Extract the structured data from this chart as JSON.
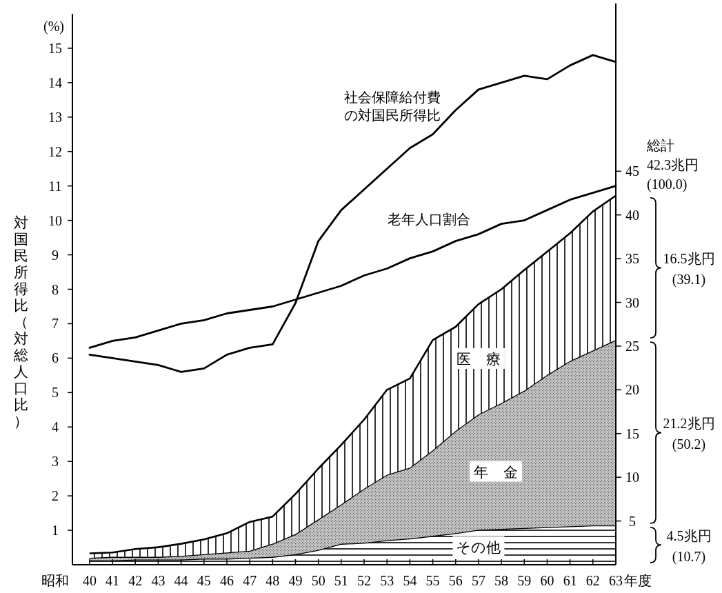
{
  "chart_data": {
    "type": "line",
    "ylabel": "対国民所得比（対総人口比）",
    "xlabel": "昭和",
    "x": [
      40,
      41,
      42,
      43,
      44,
      45,
      46,
      47,
      48,
      49,
      50,
      51,
      52,
      53,
      54,
      55,
      56,
      57,
      58,
      59,
      60,
      61,
      62,
      63
    ],
    "xlim": [
      39.25,
      63
    ],
    "xticks": [
      40,
      41,
      42,
      43,
      44,
      45,
      46,
      47,
      48,
      49,
      50,
      51,
      52,
      53,
      54,
      55,
      56,
      57,
      58,
      59,
      60,
      61,
      62,
      63
    ],
    "ylim": [
      0,
      16
    ],
    "yticks": [
      1,
      2,
      3,
      4,
      5,
      6,
      7,
      8,
      9,
      10,
      11,
      12,
      13,
      14,
      15
    ],
    "y2lim": [
      0,
      63
    ],
    "y2ticks": [
      5,
      10,
      15,
      20,
      25,
      30,
      35,
      40,
      45
    ],
    "stacked": true,
    "legend": false,
    "grid": false,
    "series": [
      {
        "name": "社会保障給付費の対国民所得比",
        "color": "#000000",
        "values": [
          6.1,
          6.0,
          5.9,
          5.8,
          5.6,
          5.7,
          6.1,
          6.3,
          6.4,
          7.6,
          9.4,
          10.3,
          10.9,
          11.5,
          12.1,
          12.5,
          13.2,
          13.8,
          14.0,
          14.2,
          14.1,
          14.5,
          14.8,
          14.6
        ]
      },
      {
        "name": "老年人口割合",
        "color": "#000000",
        "values": [
          6.3,
          6.5,
          6.6,
          6.8,
          7.0,
          7.1,
          7.3,
          7.4,
          7.5,
          7.7,
          7.9,
          8.1,
          8.4,
          8.6,
          8.9,
          9.1,
          9.4,
          9.6,
          9.9,
          10.0,
          10.3,
          10.6,
          10.8,
          11.0
        ]
      },
      {
        "name": "その他",
        "type": "area",
        "axis": "y2",
        "color": "#ffffff",
        "values": [
          0.5,
          0.5,
          0.6,
          0.6,
          0.6,
          0.7,
          0.7,
          0.8,
          0.9,
          1.2,
          1.7,
          2.4,
          2.5,
          2.8,
          3.0,
          3.3,
          3.6,
          4.0,
          4.1,
          4.2,
          4.3,
          4.4,
          4.5,
          4.5
        ]
      },
      {
        "name": "年金",
        "type": "area",
        "axis": "y2",
        "color": "#c8c8c8",
        "values": [
          0.3,
          0.4,
          0.3,
          0.3,
          0.4,
          0.5,
          0.7,
          0.8,
          1.5,
          2.3,
          3.5,
          4.5,
          6.2,
          7.5,
          8.1,
          9.8,
          11.7,
          13.2,
          14.4,
          15.7,
          17.4,
          18.9,
          20.0,
          21.2
        ]
      },
      {
        "name": "医療",
        "type": "area",
        "axis": "y2",
        "color": "#ffffff",
        "values": [
          0.5,
          0.5,
          0.9,
          1.1,
          1.4,
          1.7,
          2.2,
          3.3,
          3.1,
          4.6,
          5.8,
          6.8,
          7.9,
          9.7,
          10.2,
          12.6,
          11.9,
          12.6,
          13.0,
          13.8,
          14.1,
          14.6,
          15.9,
          16.5
        ]
      }
    ],
    "annotations": [
      "(%)",
      "総計 42.3兆円 (100.0)",
      "4.5兆円 (10.7)",
      "21.2兆円 (50.2)",
      "16.5兆円 (39.1)",
      "年度"
    ]
  }
}
